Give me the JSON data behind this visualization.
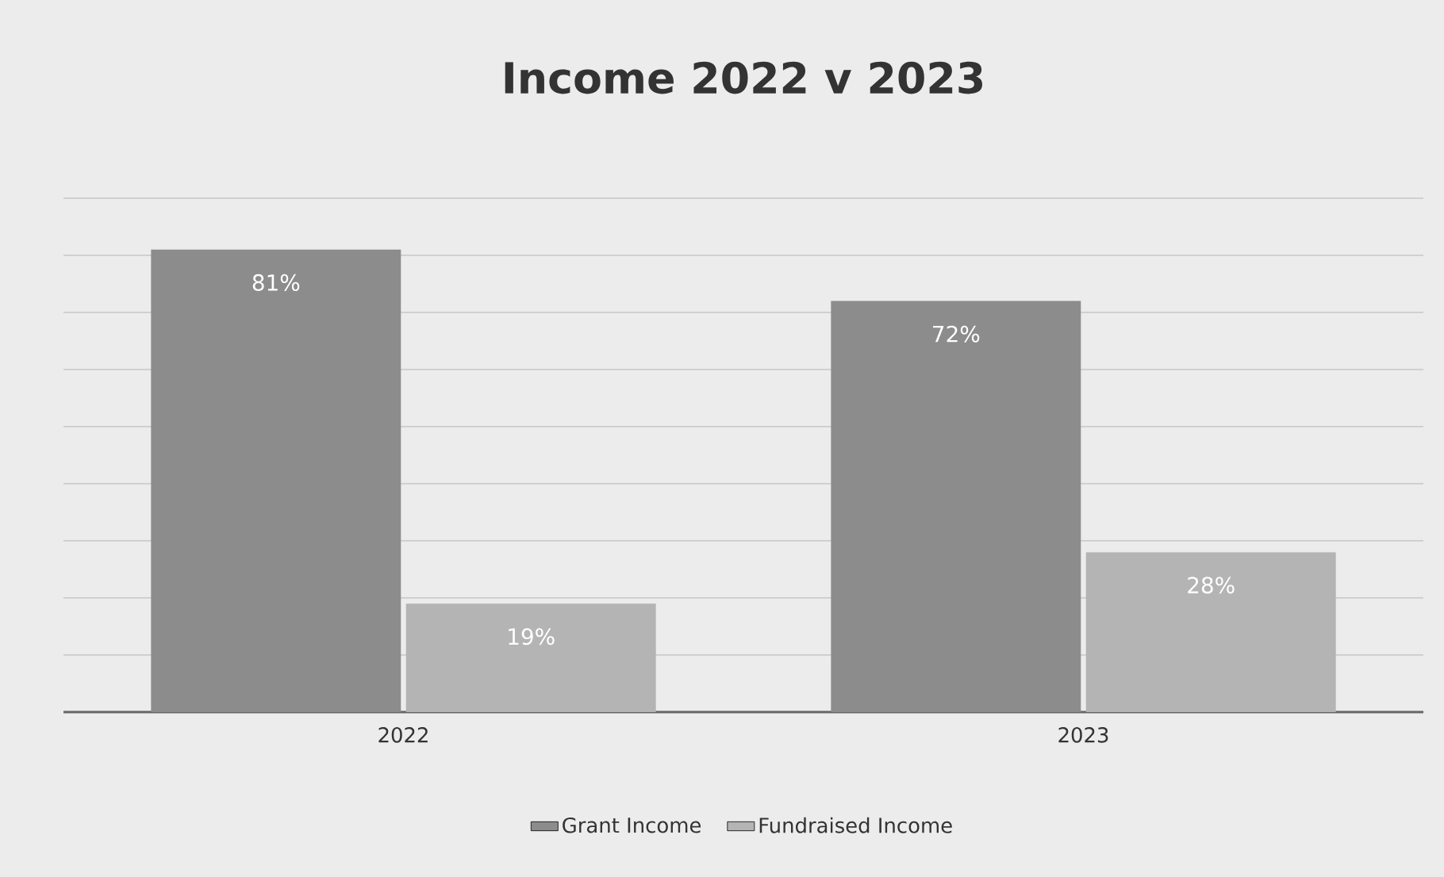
{
  "chart_data": {
    "type": "bar",
    "title": "Income 2022 v 2023",
    "categories": [
      "2022",
      "2023"
    ],
    "series": [
      {
        "name": "Grant Income",
        "color": "#8c8c8c",
        "values": [
          81,
          72
        ],
        "value_labels": [
          "81%",
          "72%"
        ]
      },
      {
        "name": "Fundraised Income",
        "color": "#b4b4b4",
        "values": [
          19,
          28
        ],
        "value_labels": [
          "19%",
          "28%"
        ]
      }
    ],
    "ylim": [
      0,
      90
    ],
    "grid": "y",
    "legend": "bottom"
  }
}
